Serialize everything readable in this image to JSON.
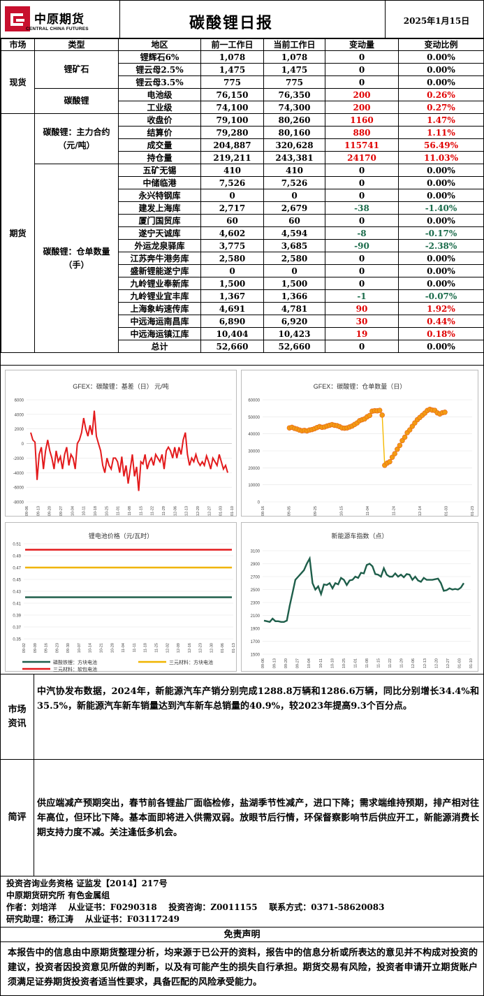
{
  "header": {
    "logo_cn": "中原期货",
    "logo_en": "CENTRAL CHINA FUTURES",
    "title": "碳酸锂日报",
    "date": "2025年1月15日"
  },
  "colors": {
    "red": "#e00000",
    "green": "#1a6b4a",
    "logo": "#c8102e",
    "price_line": "#e31a1c",
    "basis_line": "#e31a1c",
    "warrant_dot": "#f39c12",
    "nev_line": "#1e5e4a",
    "lfp": "#1e5e4a",
    "ncm_square": "#f0b400",
    "ncm_pouch": "#e31a1c"
  },
  "table": {
    "headers": [
      "市场",
      "类型",
      "地区",
      "前一工作日",
      "当前工作日",
      "变动量",
      "变动比例"
    ],
    "spot_label": "现货",
    "futures_label": "期货",
    "ore_label": "锂矿石",
    "carb_label": "碳酸锂",
    "main_label": "碳酸锂：主力合约（元/吨）",
    "warrant_label": "碳酸锂：仓单数量（手）",
    "ore_rows": [
      [
        "锂辉石6%",
        "1,078",
        "1,078",
        "0",
        "0.00%"
      ],
      [
        "锂云母2.5%",
        "1,475",
        "1,475",
        "0",
        "0.00%"
      ],
      [
        "锂云母3.5%",
        "775",
        "775",
        "0",
        "0.00%"
      ]
    ],
    "carb_rows": [
      [
        "电池级",
        "76,150",
        "76,350",
        "200",
        "0.26%"
      ],
      [
        "工业级",
        "74,100",
        "74,300",
        "200",
        "0.27%"
      ]
    ],
    "main_rows": [
      [
        "收盘价",
        "79,100",
        "80,260",
        "1160",
        "1.47%"
      ],
      [
        "结算价",
        "79,280",
        "80,160",
        "880",
        "1.11%"
      ],
      [
        "成交量",
        "204,887",
        "320,628",
        "115741",
        "56.49%"
      ],
      [
        "持仓量",
        "219,211",
        "243,381",
        "24170",
        "11.03%"
      ]
    ],
    "warrant_rows": [
      [
        "五矿无锡",
        "410",
        "410",
        "0",
        "0.00%"
      ],
      [
        "中储临港",
        "7,526",
        "7,526",
        "0",
        "0.00%"
      ],
      [
        "永兴特钢库",
        "0",
        "0",
        "0",
        "0.00%"
      ],
      [
        "建发上海库",
        "2,717",
        "2,679",
        "-38",
        "-1.40%"
      ],
      [
        "厦门国贸库",
        "60",
        "60",
        "0",
        "0.00%"
      ],
      [
        "遂宁天诚库",
        "4,602",
        "4,594",
        "-8",
        "-0.17%"
      ],
      [
        "外运龙泉驿库",
        "3,775",
        "3,685",
        "-90",
        "-2.38%"
      ],
      [
        "江苏奔牛港务库",
        "2,580",
        "2,580",
        "0",
        "0.00%"
      ],
      [
        "盛新锂能遂宁库",
        "0",
        "0",
        "0",
        "0.00%"
      ],
      [
        "九岭锂业奉新库",
        "1,500",
        "1,500",
        "0",
        "0.00%"
      ],
      [
        "九岭锂业宜丰库",
        "1,367",
        "1,366",
        "-1",
        "-0.07%"
      ],
      [
        "上海象屿速传库",
        "4,691",
        "4,781",
        "90",
        "1.92%"
      ],
      [
        "中远海运南昌库",
        "6,890",
        "6,920",
        "30",
        "0.44%"
      ],
      [
        "中远海运镇江库",
        "10,404",
        "10,423",
        "19",
        "0.18%"
      ],
      [
        "总计",
        "52,660",
        "52,660",
        "0",
        "0.00%"
      ]
    ]
  },
  "chart_data": [
    {
      "type": "line",
      "title": "GFEX：碳酸锂：基差（日） 元/吨",
      "ylim": [
        -8000,
        6000
      ],
      "yticks": [
        "6000",
        "4000",
        "2000",
        "0",
        "-2000",
        "-4000",
        "-6000",
        "-8000"
      ],
      "xticks": [
        "09-06",
        "09-13",
        "09-20",
        "09-27",
        "10-04",
        "10-11",
        "10-18",
        "10-25",
        "11-01",
        "11-08",
        "11-15",
        "11-22",
        "11-29",
        "12-06",
        "12-13",
        "12-20",
        "12-27",
        "01-03",
        "01-10"
      ],
      "values": [
        1500,
        500,
        200,
        -5000,
        -1500,
        -500,
        -3500,
        -1000,
        500,
        -1000,
        -2000,
        -3500,
        -1000,
        -2500,
        -1800,
        -3500,
        -1500,
        -500,
        -3000,
        -1500,
        -2000,
        -3500,
        0,
        500,
        1500,
        3500,
        2000,
        1000,
        2500,
        1200,
        4500,
        1000,
        0,
        -1000,
        -3000,
        -4000,
        -2000,
        -3000,
        -3500,
        -2000,
        -2000,
        -2500,
        -4000,
        -1800,
        -4500,
        -3000,
        -5500,
        -3500,
        -1500,
        -4500,
        -3200,
        -6500,
        -2500,
        -2800,
        -1500,
        -3500,
        -2500,
        -2000,
        -3000,
        -1500,
        -2000,
        -2500,
        -1500,
        -3500,
        -1000,
        -500,
        -1000,
        -2000,
        -500,
        -2000,
        -500,
        -1500,
        500,
        1500,
        -1500,
        -3000,
        -2000,
        -2500,
        -1500,
        -2500,
        -3000,
        -2500,
        -3000,
        -1700,
        -2500,
        -3500,
        -2000,
        -2500,
        -3000,
        -1500,
        -2500,
        -3500,
        -3000,
        -4000
      ]
    },
    {
      "type": "scatter",
      "title": "GFEX：碳酸锂：仓单数量（日）",
      "ylim": [
        0,
        60000
      ],
      "yticks": [
        "60000",
        "50000",
        "40000",
        "30000",
        "20000",
        "10000",
        "0"
      ],
      "xticks": [
        "08-16",
        "09-05",
        "09-25",
        "10-15",
        "11-04",
        "11-24",
        "12-14",
        "01-03",
        "01-23"
      ],
      "values": [
        43500,
        43800,
        43200,
        42800,
        42200,
        41800,
        42000,
        41700,
        42200,
        42500,
        43000,
        43700,
        44200,
        43800,
        44000,
        44600,
        45000,
        45400,
        45000,
        44800,
        44200,
        43500,
        43300,
        43500,
        44000,
        44600,
        45500,
        46400,
        47700,
        48300,
        48800,
        50000,
        50800,
        53300,
        53600,
        53500,
        53800,
        51000,
        21500,
        22800,
        23600,
        26200,
        28300,
        30900,
        33200,
        36000,
        38000,
        40700,
        42300,
        44400,
        46400,
        48300,
        49600,
        50900,
        52200,
        53700,
        54400,
        53900,
        53800,
        52300,
        51700,
        52400,
        52700
      ]
    },
    {
      "type": "line",
      "title": "锂电池价格（元/瓦时）",
      "ylim": [
        0.35,
        0.51
      ],
      "yticks": [
        "0.51",
        "0.49",
        "0.47",
        "0.45",
        "0.43",
        "0.41",
        "0.39",
        "0.37",
        "0.35"
      ],
      "xticks": [
        "09-02",
        "09-09",
        "09-16",
        "09-23",
        "09-30",
        "10-07",
        "10-14",
        "10-21",
        "10-28",
        "11-04",
        "11-11",
        "11-18",
        "11-25",
        "12-02",
        "12-09",
        "12-16",
        "12-23",
        "12-30",
        "01-06",
        "01-13"
      ],
      "series": [
        {
          "name": "磷酸铁锂：方块电池",
          "value": 0.42
        },
        {
          "name": "三元材料：方块电池",
          "value": 0.47
        },
        {
          "name": "三元材料：软包电池",
          "value": 0.5
        }
      ]
    },
    {
      "type": "line",
      "title": "新能源车指数（点）",
      "ylim": [
        1500,
        3100
      ],
      "yticks": [
        "3100",
        "2900",
        "2700",
        "2500",
        "2300",
        "2100",
        "1900",
        "1700",
        "1500"
      ],
      "xticks": [
        "09-06",
        "09-13",
        "09-20",
        "09-27",
        "10-04",
        "10-11",
        "10-18",
        "10-25",
        "11-01",
        "11-08",
        "11-15",
        "11-22",
        "11-29",
        "12-06",
        "12-13",
        "12-20",
        "12-27",
        "01-03",
        "01-10"
      ],
      "values": [
        2020,
        2010,
        2000,
        2050,
        2010,
        2010,
        2000,
        2000,
        2020,
        2250,
        2450,
        2650,
        2700,
        2750,
        2800,
        2900,
        2980,
        2600,
        2500,
        2550,
        2430,
        2580,
        2570,
        2600,
        2520,
        2600,
        2580,
        2680,
        2650,
        2570,
        2640,
        2650,
        2700,
        2680,
        2760,
        2750,
        2880,
        2900,
        2860,
        2740,
        2730,
        2700,
        2830,
        2730,
        2700,
        2700,
        2750,
        2700,
        2730,
        2690,
        2740,
        2730,
        2650,
        2700,
        2640,
        2620,
        2680,
        2650,
        2650,
        2650,
        2660,
        2670,
        2600,
        2480,
        2490,
        2520,
        2500,
        2510,
        2500,
        2530,
        2600
      ]
    }
  ],
  "market": {
    "label": "市场资讯",
    "text": "中汽协发布数据，2024年，新能源汽车产销分别完成1288.8万辆和1286.6万辆，同比分别增长34.4%和35.5%，新能源汽车新车销量达到汽车新车总销量的40.9%，较2023年提高9.3个百分点。"
  },
  "comment": {
    "label": "简评",
    "text": "供应端减产预期突出，春节前各锂盐厂面临检修，盐湖季节性减产，进口下降；需求端维持预期，排产相对往年高位，但环比下降。基本面即将进入供需双弱。放眼节后行情，环保督察影响节后供应开工，新能源消费长期支持力度不减。关注逢低多机会。"
  },
  "footer": {
    "qual": "投资咨询业务资格  证监发【2014】217号",
    "inst": "中原期货研究所  有色金属组",
    "author": "作者：刘培洋    从业证书：F0290318    投资咨询：Z0011155    联系方式：0371-58620083",
    "assist": "研究助理：杨江涛    从业证书：F03117249"
  },
  "disclaimer": {
    "title": "免责声明",
    "text": "本报告中的信息由中原期货整理分析，均来源于已公开的资料，报告中的信息分析或所表达的意见并不构成对投资的建议，投资者因投资意见所做的判断，以及有可能产生的损失自行承担。期货交易有风险，投资者申请开立期货账户须满足证券期货投资者适当性要求，具备匹配的风险承受能力。"
  }
}
